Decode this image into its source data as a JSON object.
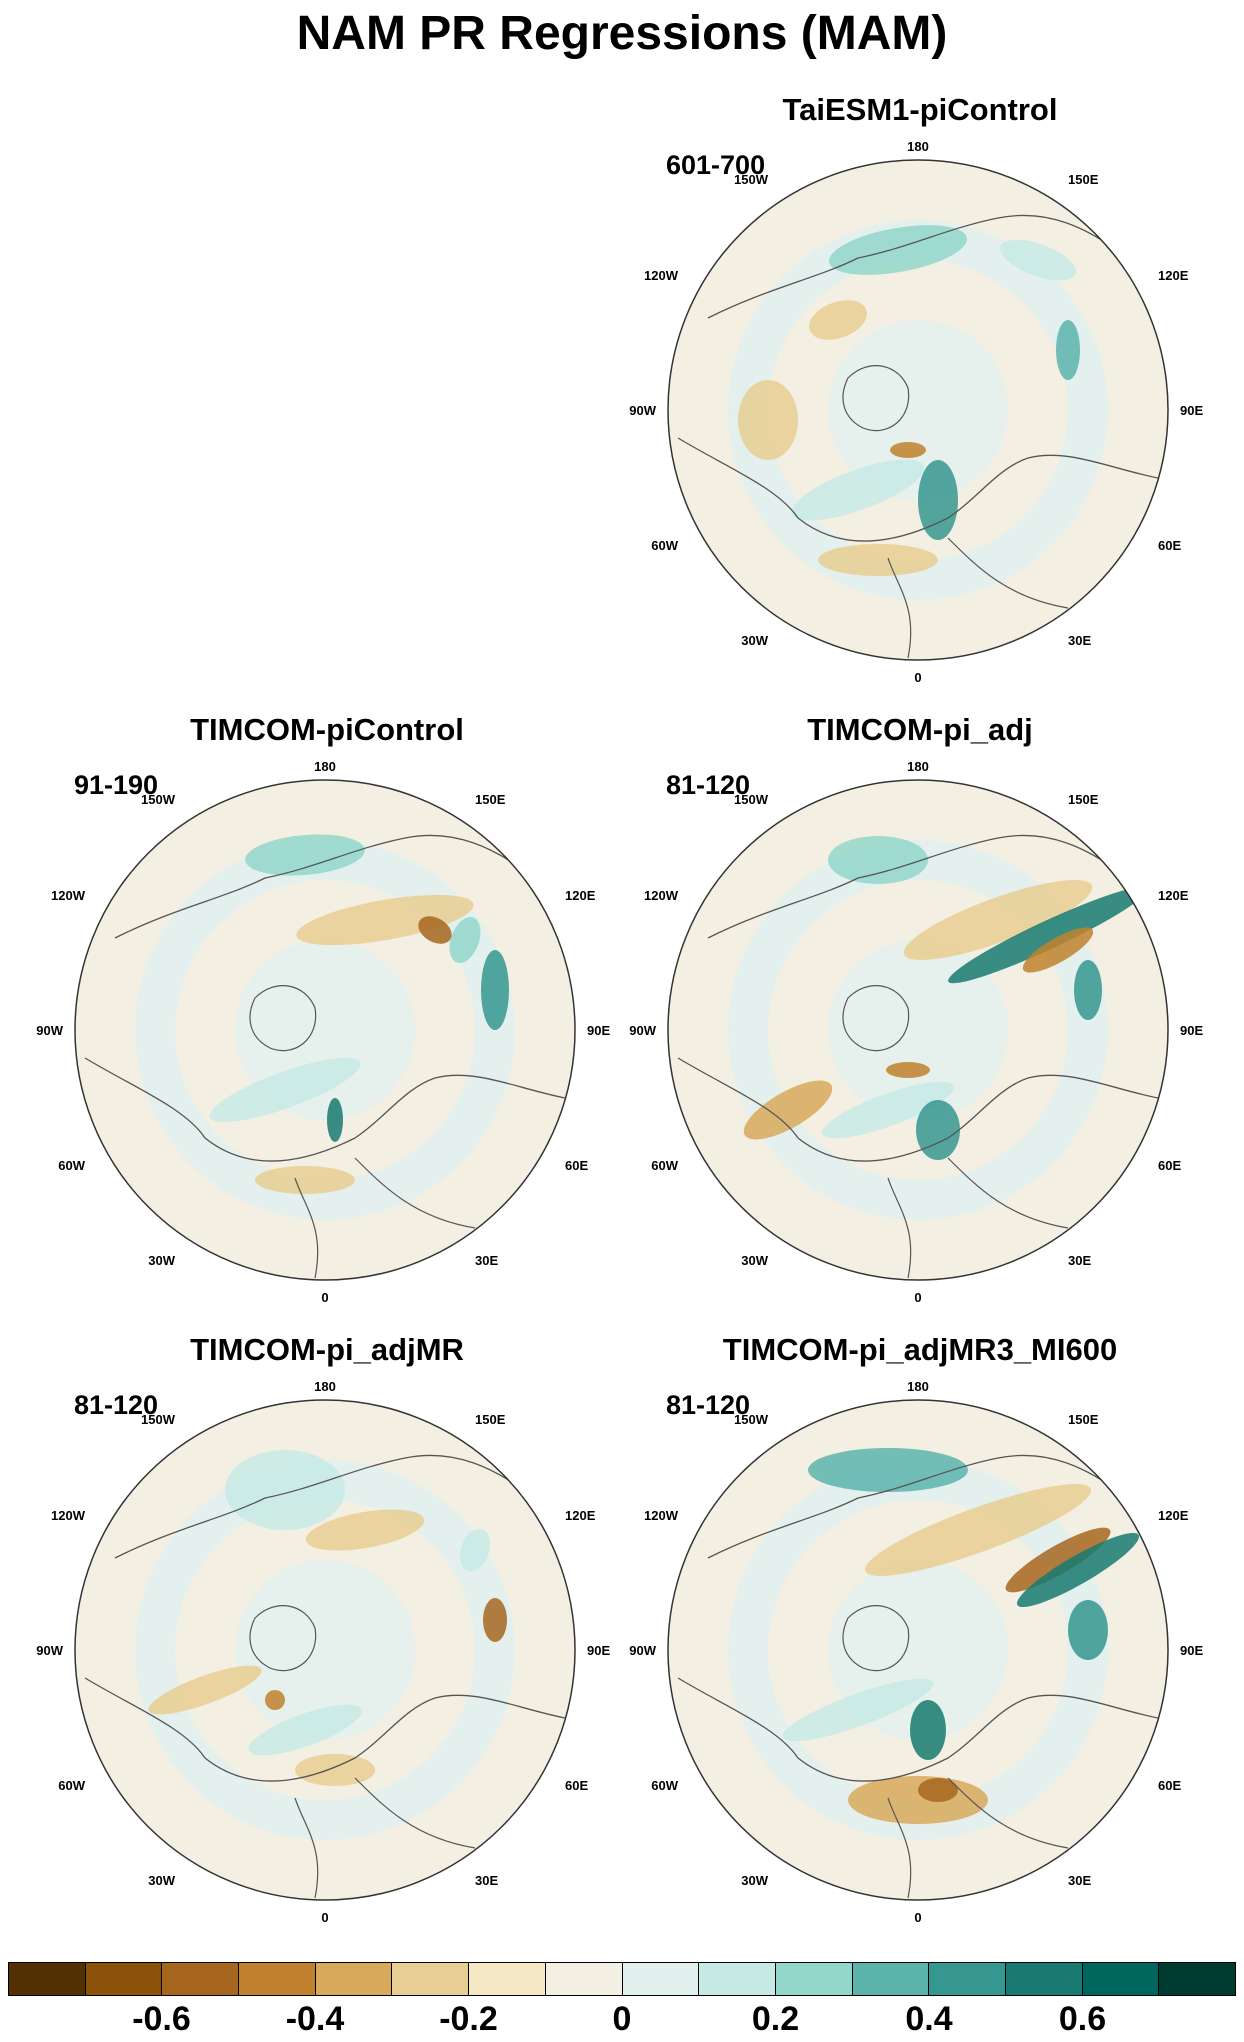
{
  "title": "NAM PR Regressions (MAM)",
  "panels": [
    {
      "title": "TaiESM1-piControl",
      "period": "601-700"
    },
    {
      "title": "TIMCOM-piControl",
      "period": "91-190"
    },
    {
      "title": "TIMCOM-pi_adj",
      "period": "81-120"
    },
    {
      "title": "TIMCOM-pi_adjMR",
      "period": "81-120"
    },
    {
      "title": "TIMCOM-pi_adjMR3_MI600",
      "period": "81-120"
    }
  ],
  "longitude_labels": {
    "top": "180",
    "upper_left": "150W",
    "upper_right": "150E",
    "left_high": "120W",
    "right_high": "120E",
    "left": "90W",
    "right": "90E",
    "left_low": "60W",
    "right_low": "60E",
    "lower_left": "30W",
    "lower_right": "30E",
    "bottom": "0"
  },
  "colorbar": {
    "colors": [
      "#543005",
      "#8c510a",
      "#a6661e",
      "#bf812d",
      "#d8a95a",
      "#e7ce92",
      "#f5e8c4",
      "#f4efe3",
      "#e2f0ee",
      "#c7eae5",
      "#93d6ca",
      "#5ab4ac",
      "#35978f",
      "#187a70",
      "#01665e",
      "#003c30"
    ],
    "labels": [
      "-0.6",
      "-0.4",
      "-0.2",
      "0",
      "0.2",
      "0.4",
      "0.6"
    ]
  }
}
